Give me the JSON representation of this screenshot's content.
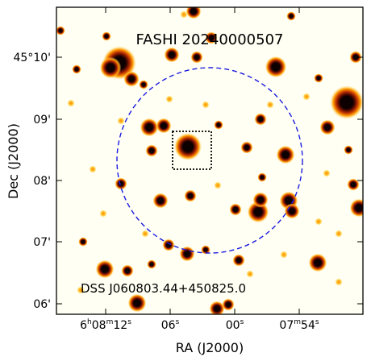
{
  "title": "FASHI 20240000507",
  "annotation": "DSS J060803.44+450825.0",
  "axes": {
    "xlabel": "RA (J2000)",
    "ylabel": "Dec (J2000)",
    "xticks": [
      {
        "h": "6",
        "hu": "h",
        "m": "08",
        "mu": "m",
        "s": "12",
        "su": "s"
      },
      {
        "h": "",
        "hu": "",
        "m": "",
        "mu": "",
        "s": "06",
        "su": "s"
      },
      {
        "h": "",
        "hu": "",
        "m": "",
        "mu": "",
        "s": "00",
        "su": "s"
      },
      {
        "h": "",
        "hu": "",
        "m": "07",
        "mu": "m",
        "s": "54",
        "su": "s"
      }
    ],
    "yticks": [
      "45°10'",
      "09'",
      "08'",
      "07'",
      "06'"
    ]
  },
  "colors": {
    "background": "#fffff4",
    "star_core": "#0d0000",
    "star_halo": "#ff9a00",
    "beam_circle": "#1a1adf",
    "box": "#000000"
  },
  "overlays": {
    "beam_circle_style": "dashed",
    "target_box_style": "dotted"
  }
}
